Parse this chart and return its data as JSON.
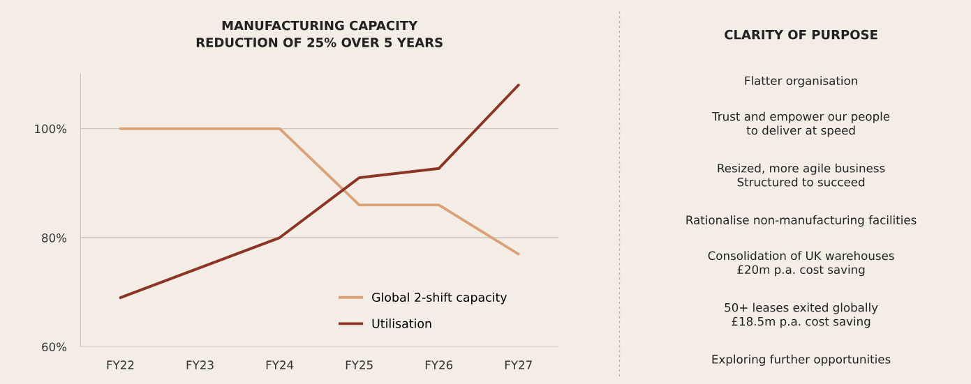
{
  "chart_data": [
    {
      "type": "line",
      "title": "MANUFACTURING CAPACITY\nREDUCTION OF 25% OVER 5 YEARS",
      "categories": [
        "FY22",
        "FY23",
        "FY24",
        "FY25",
        "FY26",
        "FY27"
      ],
      "series": [
        {
          "name": "Global 2-shift capacity",
          "color": "#d9a27a",
          "values": [
            100,
            100,
            100,
            86,
            86,
            77
          ]
        },
        {
          "name": "Utilisation",
          "color": "#8b3527",
          "values": [
            69,
            74.5,
            80,
            91,
            92.7,
            108
          ]
        }
      ],
      "ylim": [
        60,
        110
      ],
      "yticks": [
        {
          "value": 60,
          "label": "60%"
        },
        {
          "value": 80,
          "label": "80%"
        },
        {
          "value": 100,
          "label": "100%"
        }
      ],
      "grid": "y",
      "legend": "bottom right",
      "marker": "none",
      "line_style": "solid"
    },
    {
      "type": "other",
      "title": "CLARITY OF PURPOSE",
      "annotations": [
        "Flatter organisation",
        "Trust and empower our people\nto deliver at speed",
        "Resized, more agile business\nStructured to succeed",
        "Rationalise non-manufacturing facilities",
        "Consolidation of UK warehouses\n£20m p.a. cost saving",
        "50+ leases exited globally\n£18.5m p.a. cost saving",
        "Exploring further opportunities"
      ]
    }
  ]
}
